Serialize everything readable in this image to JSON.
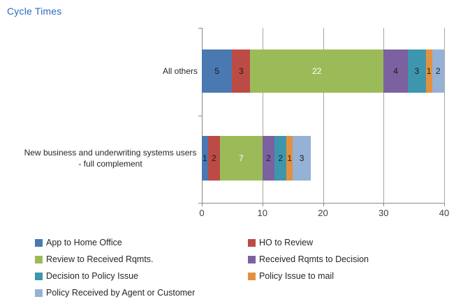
{
  "title": "Cycle Times",
  "colors": {
    "title": "#2B6BC3",
    "axis_line": "#898989",
    "gridline": "#A6A6A6",
    "text": "#262626",
    "tick_label": "#404040"
  },
  "chart_data": {
    "type": "bar",
    "orientation": "horizontal",
    "stacked": true,
    "title": "Cycle Times",
    "categories": [
      "All others",
      "New business and underwriting systems users - full complement"
    ],
    "series": [
      {
        "name": "App to Home Office",
        "color": "#4A78B0",
        "label_color": "#1a1a1a",
        "values": [
          5,
          1
        ]
      },
      {
        "name": "HO to Review",
        "color": "#BD4B45",
        "label_color": "#1a1a1a",
        "values": [
          3,
          2
        ]
      },
      {
        "name": "Review to Received Rqmts.",
        "color": "#9BBB59",
        "label_color": "#FFFFFF",
        "values": [
          22,
          7
        ]
      },
      {
        "name": "Received Rqmts to Decision",
        "color": "#7C61A0",
        "label_color": "#1a1a1a",
        "values": [
          4,
          2
        ]
      },
      {
        "name": "Decision to Policy Issue",
        "color": "#3D96AE",
        "label_color": "#1a1a1a",
        "values": [
          3,
          2
        ]
      },
      {
        "name": "Policy Issue to mail",
        "color": "#E3913E",
        "label_color": "#1a1a1a",
        "values": [
          1,
          1
        ]
      },
      {
        "name": "Policy Received by Agent or Customer",
        "color": "#95B1D6",
        "label_color": "#1a1a1a",
        "values": [
          2,
          3
        ]
      }
    ],
    "x_ticks": [
      0,
      10,
      20,
      30,
      40
    ],
    "x_tick_labels": [
      "0",
      "10",
      "20",
      "30",
      "40"
    ],
    "xlim": [
      0,
      40
    ],
    "xlabel": "",
    "ylabel": "",
    "grid": true,
    "data_labels": true,
    "legend_position": "bottom"
  }
}
